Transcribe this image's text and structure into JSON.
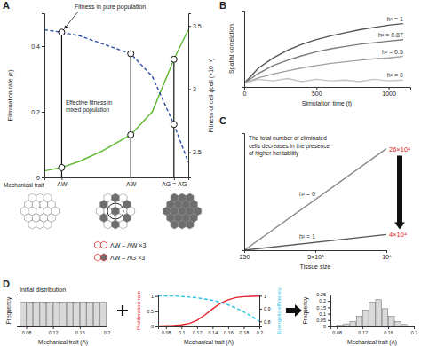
{
  "chart_data": [
    {
      "type": "line",
      "title": "A",
      "x_label": "Mechanical trait",
      "y_label": "Elimination rate (ε)",
      "y2_label": "Fitness of cell ϕcell (×10⁻³)",
      "x": [
        0,
        0.12,
        0.25,
        0.4,
        0.6,
        0.75,
        0.9,
        1
      ],
      "xlim": [
        0,
        1
      ],
      "xticks": [
        {
          "value": 0.12,
          "label": "ΛW"
        },
        {
          "value": 0.6,
          "label": "Λ̃W"
        },
        {
          "value": 0.9,
          "label": "ΛG = Λ̃G"
        }
      ],
      "ylim": [
        0,
        0.5
      ],
      "yticks": [
        0,
        0.2,
        0.4
      ],
      "y2lim": [
        2.3,
        3.6
      ],
      "y2ticks": [
        2.5,
        3,
        3.5
      ],
      "series": [
        {
          "color": "#5cb82e",
          "marker": "circle",
          "line_style": "solid",
          "values": [
            0.02,
            0.03,
            0.05,
            0.08,
            0.13,
            0.2,
            0.36,
            0.45
          ]
        },
        {
          "color": "#2c4fa3",
          "axis": "y2",
          "marker": "circle",
          "line_style": "dashed",
          "values": [
            3.47,
            3.45,
            3.42,
            3.36,
            3.28,
            3.1,
            2.72,
            2.42
          ]
        }
      ],
      "annotations": [
        "Fitness in pure population",
        "Effective fitness in mixed population",
        "ΛW – ΛW ×3",
        "ΛW – ΛG ×3"
      ]
    },
    {
      "type": "line",
      "title": "B",
      "x_label": "Simulation time (t)",
      "y_label": "Spatial correlation",
      "x": [
        0,
        100,
        200,
        300,
        400,
        500,
        600,
        700,
        800,
        900,
        1000,
        1100
      ],
      "xlim": [
        0,
        1150
      ],
      "xticks": [
        0,
        500,
        1000
      ],
      "ylim": [
        0,
        1
      ],
      "tick_labels": "x",
      "series": [
        {
          "name": "h² = 1",
          "color": "#555555",
          "values": [
            0.05,
            0.25,
            0.38,
            0.48,
            0.56,
            0.62,
            0.67,
            0.71,
            0.75,
            0.78,
            0.81,
            0.83
          ]
        },
        {
          "name": "h² = 0.87",
          "color": "#7a7a7a",
          "values": [
            0.05,
            0.18,
            0.28,
            0.35,
            0.41,
            0.46,
            0.5,
            0.53,
            0.56,
            0.58,
            0.6,
            0.62
          ]
        },
        {
          "name": "h² = 0.5",
          "color": "#a0a0a0",
          "values": [
            0.05,
            0.12,
            0.17,
            0.21,
            0.25,
            0.28,
            0.31,
            0.33,
            0.35,
            0.37,
            0.38,
            0.4
          ]
        },
        {
          "name": "h² = 0",
          "color": "#c4c4c4",
          "values": [
            0.05,
            0.1,
            0.08,
            0.11,
            0.07,
            0.1,
            0.08,
            0.09,
            0.07,
            0.1,
            0.08,
            0.09
          ]
        }
      ]
    },
    {
      "type": "line",
      "title": "C",
      "x_label": "Tissue size",
      "x": [
        250,
        1000000
      ],
      "xlim": [
        250,
        1000000
      ],
      "xticks": [
        250,
        {
          "value": 500000,
          "label": "5×10⁵"
        },
        {
          "value": 1000000,
          "label": "10⁶"
        }
      ],
      "ylim": [
        0,
        300000
      ],
      "tick_labels": "x",
      "data_labels": true,
      "series": [
        {
          "name": "h² = 0",
          "color": "#888888",
          "values": [
            0,
            260000
          ],
          "value_labels": [
            null,
            "26×10⁴"
          ]
        },
        {
          "name": "h² = 1",
          "color": "#555555",
          "values": [
            0,
            40000
          ],
          "value_labels": [
            null,
            "4×10⁴"
          ]
        }
      ],
      "annotations": [
        "The total number of eliminated",
        "cells decreases in the presence",
        "of higher heritability"
      ]
    },
    {
      "type": "histogram",
      "title": "D",
      "subtitle": "Initial distribution",
      "x_label": "Mechanical trait (Λ)",
      "y_label": "Frequency",
      "bins": [
        0.07,
        0.08,
        0.09,
        0.1,
        0.11,
        0.12,
        0.13,
        0.14,
        0.15,
        0.16,
        0.17,
        0.18,
        0.19,
        0.2
      ],
      "values": [
        0.077,
        0.077,
        0.077,
        0.077,
        0.077,
        0.077,
        0.077,
        0.077,
        0.077,
        0.077,
        0.077,
        0.077,
        0.077
      ],
      "color": "#d9d9d9",
      "xlim": [
        0.07,
        0.2
      ],
      "xticks": [
        0.08,
        0.12,
        0.16,
        0.2
      ],
      "ylim": [
        0,
        0.1
      ],
      "tick_labels": "x"
    },
    {
      "type": "line",
      "x_label": "Mechanical trait (Λ)",
      "y_label": "Proliferation rate",
      "y2_label": "Energetic efficiency",
      "x": [
        0.07,
        0.08,
        0.09,
        0.1,
        0.11,
        0.12,
        0.13,
        0.14,
        0.15,
        0.16,
        0.17,
        0.18,
        0.19,
        0.2
      ],
      "xlim": [
        0.07,
        0.2
      ],
      "xticks": [
        0.08,
        0.1,
        0.12,
        0.14,
        0.16,
        0.18,
        0.2
      ],
      "ylim": [
        0,
        1.05
      ],
      "yticks": [
        0,
        0.5,
        1
      ],
      "y2lim": [
        0.76,
        1.01
      ],
      "y2ticks": [
        0.8,
        0.9,
        1
      ],
      "series": [
        {
          "color": "#e8202a",
          "line_style": "solid",
          "values": [
            0.01,
            0.02,
            0.03,
            0.05,
            0.1,
            0.2,
            0.38,
            0.58,
            0.76,
            0.88,
            0.95,
            0.98,
            0.99,
            1.0
          ]
        },
        {
          "color": "#2ec4e6",
          "axis": "y2",
          "line_style": "dashed",
          "values": [
            1.0,
            1.0,
            1.0,
            0.995,
            0.99,
            0.985,
            0.975,
            0.965,
            0.95,
            0.93,
            0.905,
            0.875,
            0.84,
            0.8
          ]
        }
      ]
    },
    {
      "type": "histogram",
      "x_label": "Mechanical trait (Λ)",
      "y_label": "Frequency",
      "bins": [
        0.07,
        0.08,
        0.09,
        0.1,
        0.11,
        0.12,
        0.13,
        0.14,
        0.15,
        0.16,
        0.17,
        0.18,
        0.19,
        0.2
      ],
      "values": [
        0.005,
        0.01,
        0.02,
        0.04,
        0.08,
        0.13,
        0.19,
        0.21,
        0.14,
        0.08,
        0.04,
        0.015,
        0.005
      ],
      "color": "#d9d9d9",
      "xlim": [
        0.07,
        0.2
      ],
      "xticks": [
        0.08,
        0.12,
        0.16,
        0.2
      ],
      "ylim": [
        0,
        0.25
      ],
      "yticks": [
        0,
        0.05,
        0.1,
        0.15,
        0.2,
        0.25
      ]
    }
  ]
}
